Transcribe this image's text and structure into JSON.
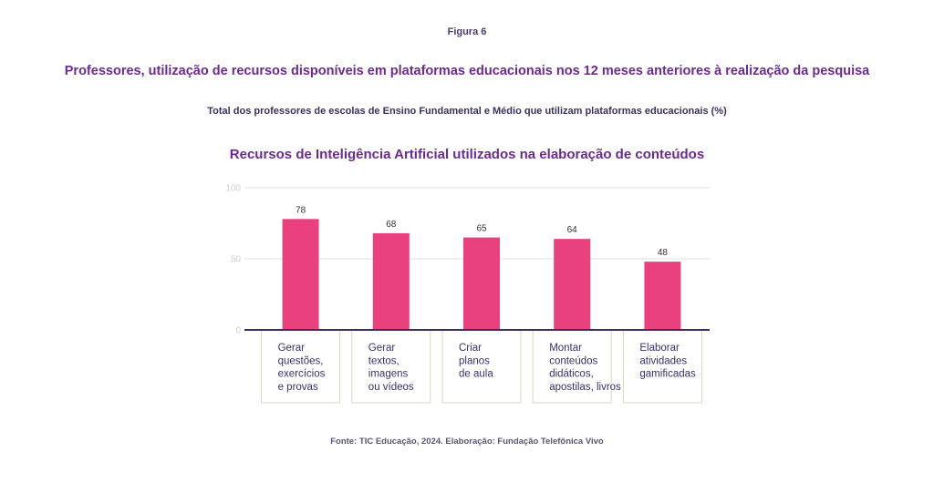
{
  "figure_label": "Figura 6",
  "main_title": "Professores, utilização de recursos disponíveis em plataformas educacionais nos 12 meses anteriores à realização da pesquisa",
  "subtitle": "Total dos professores de escolas de Ensino Fundamental e Médio que utilizam plataformas educacionais (%)",
  "source": "Fonte: TIC Educação, 2024. Elaboração: Fundação Telefônica Vivo",
  "colors": {
    "bar": "#e8417e",
    "axis": "#3a2f6b",
    "grid": "#e2e2dc",
    "tick_label": "#cfcfc8",
    "category_box": "#d9d8c4",
    "category_text": "#3a2f6b",
    "value_label": "#333333"
  },
  "chart_data": {
    "type": "bar",
    "title": "Recursos de Inteligência Artificial utilizados na elaboração de conteúdos",
    "xlabel": "",
    "ylabel": "",
    "ylim": [
      0,
      100
    ],
    "yticks": [
      0,
      50,
      100
    ],
    "grid": true,
    "categories": [
      [
        "Gerar",
        "questões,",
        "exercícios",
        "e provas"
      ],
      [
        "Gerar",
        "textos,",
        "imagens",
        "ou vídeos"
      ],
      [
        "Criar",
        "planos",
        "de aula"
      ],
      [
        "Montar",
        "conteúdos",
        "didáticos,",
        "apostilas, livros"
      ],
      [
        "Elaborar",
        "atividades",
        "gamificadas"
      ]
    ],
    "values": [
      78,
      68,
      65,
      64,
      48
    ],
    "value_labels": [
      "78",
      "68",
      "65",
      "64",
      "48"
    ]
  }
}
